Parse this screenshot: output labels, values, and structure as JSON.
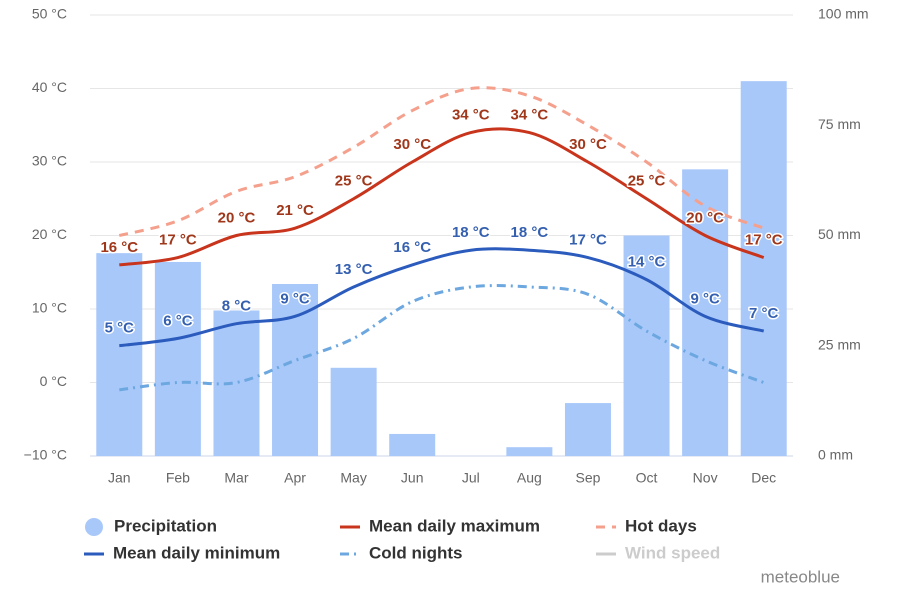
{
  "chart_data": {
    "type": "combo",
    "categories": [
      "Jan",
      "Feb",
      "Mar",
      "Apr",
      "May",
      "Jun",
      "Jul",
      "Aug",
      "Sep",
      "Oct",
      "Nov",
      "Dec"
    ],
    "ylim": [
      -10,
      50
    ],
    "yticks": [
      {
        "value": -10,
        "label": "−10 °C"
      },
      {
        "value": 0,
        "label": "0 °C"
      },
      {
        "value": 10,
        "label": "10 °C"
      },
      {
        "value": 20,
        "label": "20 °C"
      },
      {
        "value": 30,
        "label": "30 °C"
      },
      {
        "value": 40,
        "label": "40 °C"
      },
      {
        "value": 50,
        "label": "50 °C"
      }
    ],
    "y2lim": [
      0,
      100
    ],
    "y2ticks": [
      {
        "value": 0,
        "label": "0 mm"
      },
      {
        "value": 25,
        "label": "25 mm"
      },
      {
        "value": 50,
        "label": "50 mm"
      },
      {
        "value": 75,
        "label": "75 mm"
      },
      {
        "value": 100,
        "label": "100 mm"
      }
    ],
    "grid": true,
    "series": [
      {
        "name": "Precipitation",
        "type": "bar",
        "axis": "y2",
        "color": "#a8c8fa",
        "values": [
          46,
          44,
          33,
          39,
          20,
          5,
          0,
          2,
          12,
          50,
          65,
          85
        ]
      },
      {
        "name": "Mean daily maximum",
        "type": "line",
        "color": "#c8341c",
        "label_color": "#a0371b",
        "values": [
          16,
          17,
          20,
          21,
          25,
          30,
          34,
          34,
          30,
          25,
          20,
          17
        ],
        "value_labels": [
          "16 °C",
          "17 °C",
          "20 °C",
          "21 °C",
          "25 °C",
          "30 °C",
          "34 °C",
          "34 °C",
          "30 °C",
          "25 °C",
          "20 °C",
          "17 °C"
        ]
      },
      {
        "name": "Hot days",
        "type": "line",
        "dash": "dashed",
        "color": "#f5a08c",
        "values": [
          20,
          22,
          26,
          28,
          32,
          37,
          40,
          39,
          35,
          30,
          24,
          21
        ]
      },
      {
        "name": "Mean daily minimum",
        "type": "line",
        "color": "#2b5bbd",
        "label_color": "#3560b0",
        "values": [
          5,
          6,
          8,
          9,
          13,
          16,
          18,
          18,
          17,
          14,
          9,
          7
        ],
        "value_labels": [
          "5 °C",
          "6 °C",
          "8 °C",
          "9 °C",
          "13 °C",
          "16 °C",
          "18 °C",
          "18 °C",
          "17 °C",
          "14 °C",
          "9 °C",
          "7 °C"
        ]
      },
      {
        "name": "Cold nights",
        "type": "line",
        "dash": "dashdot",
        "color": "#6ca7e0",
        "values": [
          -1,
          0,
          0,
          3,
          6,
          11,
          13,
          13,
          12,
          7,
          3,
          0
        ]
      }
    ],
    "legend_extra": [
      {
        "name": "Wind speed",
        "color": "#cccccc"
      }
    ],
    "watermark": "meteoblue"
  }
}
